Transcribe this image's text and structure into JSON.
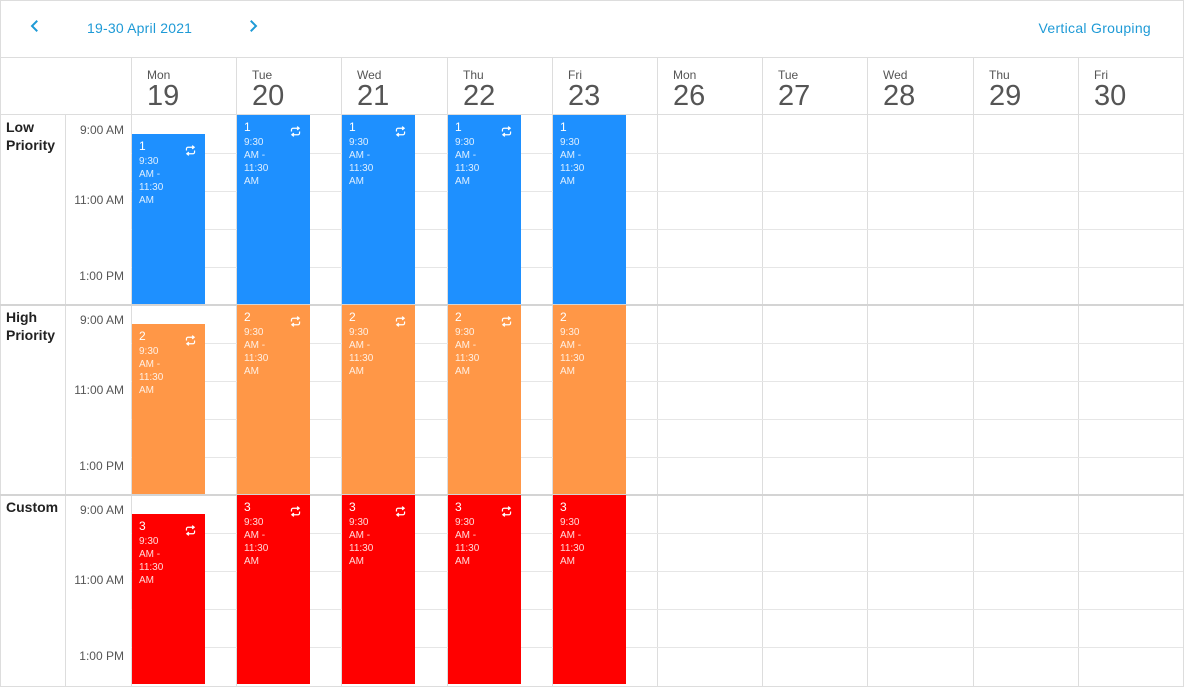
{
  "toolbar": {
    "date_range": "19-30 April 2021",
    "grouping_label": "Vertical Grouping"
  },
  "days": [
    {
      "name": "Mon",
      "num": "19"
    },
    {
      "name": "Tue",
      "num": "20"
    },
    {
      "name": "Wed",
      "num": "21"
    },
    {
      "name": "Thu",
      "num": "22"
    },
    {
      "name": "Fri",
      "num": "23"
    },
    {
      "name": "Mon",
      "num": "26"
    },
    {
      "name": "Tue",
      "num": "27"
    },
    {
      "name": "Wed",
      "num": "28"
    },
    {
      "name": "Thu",
      "num": "29"
    },
    {
      "name": "Fri",
      "num": "30"
    }
  ],
  "groups": [
    {
      "label": "Low Priority",
      "color": "#1e90ff",
      "title": "1"
    },
    {
      "label": "High Priority",
      "color": "#ff9747",
      "title": "2"
    },
    {
      "label": "Custom",
      "color": "#ff0000",
      "title": "3"
    }
  ],
  "time_labels": [
    "9:00 AM",
    "11:00 AM",
    "1:00 PM"
  ],
  "appointment_time": "9:30 AM - 11:30 AM",
  "icons": {
    "prev": "chevron-left-icon",
    "next": "chevron-right-icon",
    "recurrence": "repeat-icon"
  },
  "accent_color": "#1e9ad6"
}
